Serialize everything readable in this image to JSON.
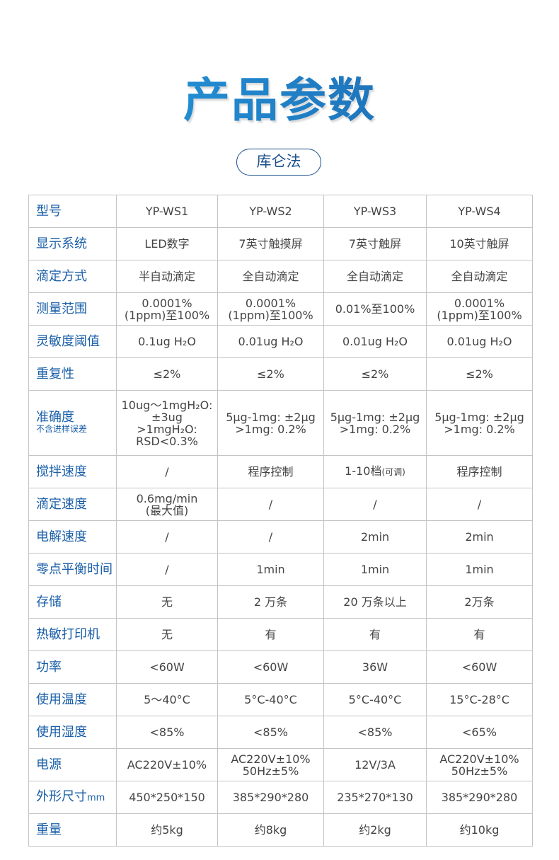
{
  "title": "产品参数",
  "category": "库仑法",
  "colors": {
    "label": "#1a5fa8",
    "title_start": "#27a3e6",
    "title_end": "#1a5fa8",
    "border": "#c4c4c4"
  },
  "rows": [
    {
      "label": "型号",
      "cells": [
        "YP-WS1",
        "YP-WS2",
        "YP-WS3",
        "YP-WS4"
      ]
    },
    {
      "label": "显示系统",
      "cells": [
        "LED数字",
        "7英寸触摸屏",
        "7英寸触屏",
        "10英寸触屏"
      ]
    },
    {
      "label": "滴定方式",
      "cells": [
        "半自动滴定",
        "全自动滴定",
        "全自动滴定",
        "全自动滴定"
      ]
    },
    {
      "label": "测量范围",
      "cells": [
        "0.0001%\n(1ppm)至100%",
        "0.0001%\n(1ppm)至100%",
        "0.01%至100%",
        "0.0001%\n(1ppm)至100%"
      ]
    },
    {
      "label": "灵敏度阈值",
      "cells": [
        "0.1ug H₂O",
        "0.01ug H₂O",
        "0.01ug H₂O",
        "0.01ug H₂O"
      ]
    },
    {
      "label": "重复性",
      "cells": [
        "≤2%",
        "≤2%",
        "≤2%",
        "≤2%"
      ]
    },
    {
      "label": "准确度",
      "note": "不含进样误差",
      "cells": [
        "10ug～1mgH₂O:\n±3ug\n>1mgH₂O:\nRSD<0.3%",
        "5μg-1mg: ±2μg\n>1mg: 0.2%",
        "5μg-1mg: ±2μg\n>1mg: 0.2%",
        "5μg-1mg: ±2μg\n>1mg: 0.2%"
      ]
    },
    {
      "label": "搅拌速度",
      "cells": [
        "/",
        "程序控制",
        "1-10档",
        "程序控制"
      ],
      "cell_notes": [
        "",
        "",
        "(可调)",
        ""
      ]
    },
    {
      "label": "滴定速度",
      "cells": [
        "0.6mg/min\n(最大值)",
        "/",
        "/",
        "/"
      ]
    },
    {
      "label": "电解速度",
      "cells": [
        "/",
        "/",
        "2min",
        "2min"
      ]
    },
    {
      "label": "零点平衡时间",
      "cells": [
        "/",
        "1min",
        "1min",
        "1min"
      ]
    },
    {
      "label": "存储",
      "cells": [
        "无",
        "2 万条",
        "20 万条以上",
        "2万条"
      ]
    },
    {
      "label": "热敏打印机",
      "cells": [
        "无",
        "有",
        "有",
        "有"
      ]
    },
    {
      "label": "功率",
      "cells": [
        "<60W",
        "<60W",
        "36W",
        "<60W"
      ]
    },
    {
      "label": "使用温度",
      "cells": [
        "5～40°C",
        "5°C-40°C",
        "5°C-40°C",
        "15°C-28°C"
      ]
    },
    {
      "label": "使用湿度",
      "cells": [
        "<85%",
        "<85%",
        "<85%",
        "<65%"
      ]
    },
    {
      "label": "电源",
      "cells": [
        "AC220V±10%",
        "AC220V±10%\n50Hz±5%",
        "12V/3A",
        "AC220V±10%\n50Hz±5%"
      ]
    },
    {
      "label": "外形尺寸",
      "unit": "mm",
      "cells": [
        "450*250*150",
        "385*290*280",
        "235*270*130",
        "385*290*280"
      ]
    },
    {
      "label": "重量",
      "cells": [
        "约5kg",
        "约8kg",
        "约2kg",
        "约10kg"
      ]
    }
  ]
}
